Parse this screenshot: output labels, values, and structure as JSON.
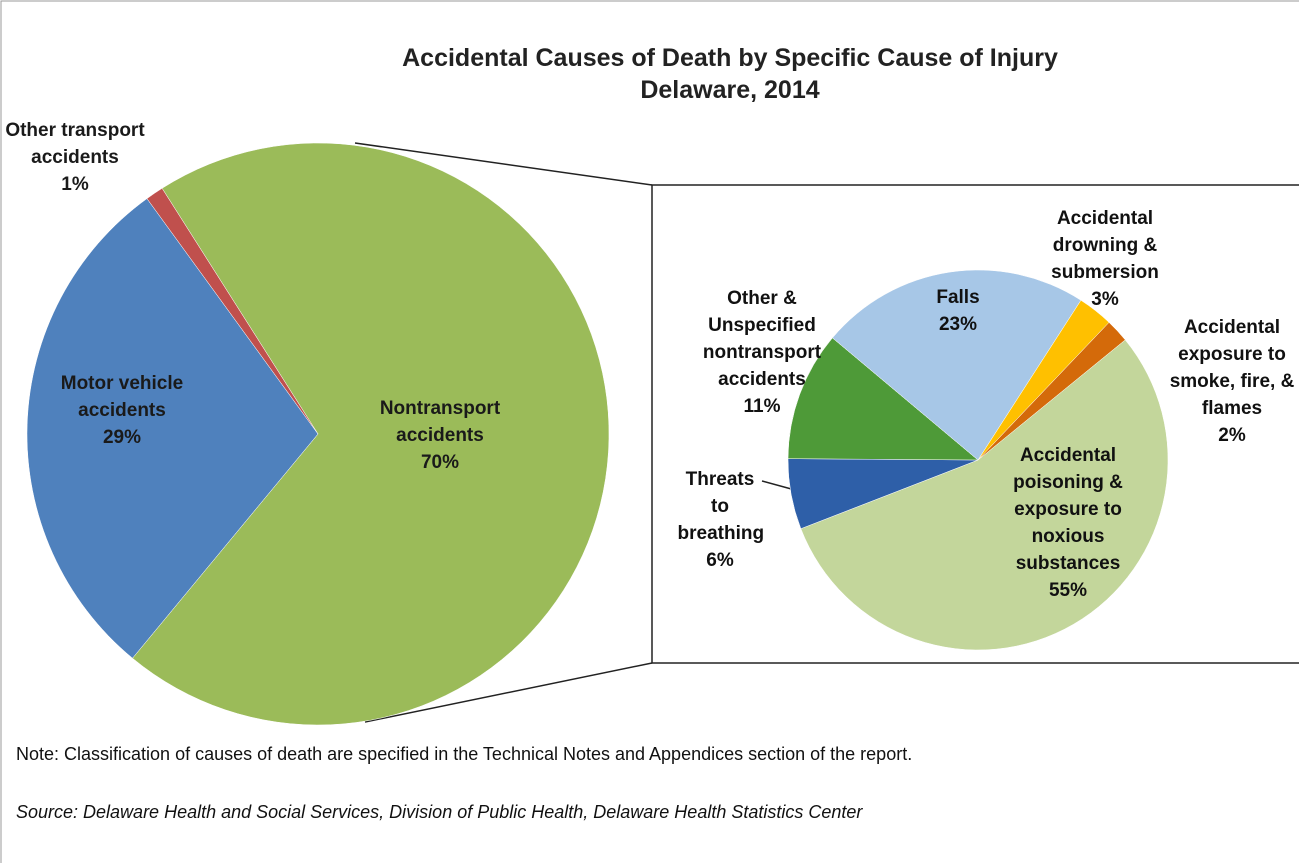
{
  "chart_data": [
    {
      "type": "pie",
      "title": "Accidental Causes of Death by Specific Cause of Injury",
      "subtitle": "Delaware, 2014",
      "categories": [
        "Nontransport accidents",
        "Motor vehicle accidents",
        "Other transport accidents"
      ],
      "values": [
        70,
        29,
        1
      ],
      "value_labels": [
        "70%",
        "29%",
        "1%"
      ],
      "colors": [
        "#9bbb59",
        "#4f81bd",
        "#c0504d"
      ]
    },
    {
      "type": "pie",
      "categories": [
        "Accidental poisoning & exposure to noxious substances",
        "Threats to breathing",
        "Other & Unspecified nontransport accidents",
        "Falls",
        "Accidental drowning & submersion",
        "Accidental exposure to smoke, fire, & flames"
      ],
      "values": [
        55,
        6,
        11,
        23,
        3,
        2
      ],
      "value_labels": [
        "55%",
        "6%",
        "11%",
        "23%",
        "3%",
        "2%"
      ],
      "colors": [
        "#c3d69b",
        "#2e5fa8",
        "#4e9a38",
        "#a7c7e7",
        "#ffc000",
        "#d46a0a"
      ]
    }
  ],
  "note": "Note: Classification of causes of death are specified in the Technical Notes and Appendices section of the report.",
  "source": "Source: Delaware Health and Social Services, Division of Public Health, Delaware Health Statistics Center"
}
